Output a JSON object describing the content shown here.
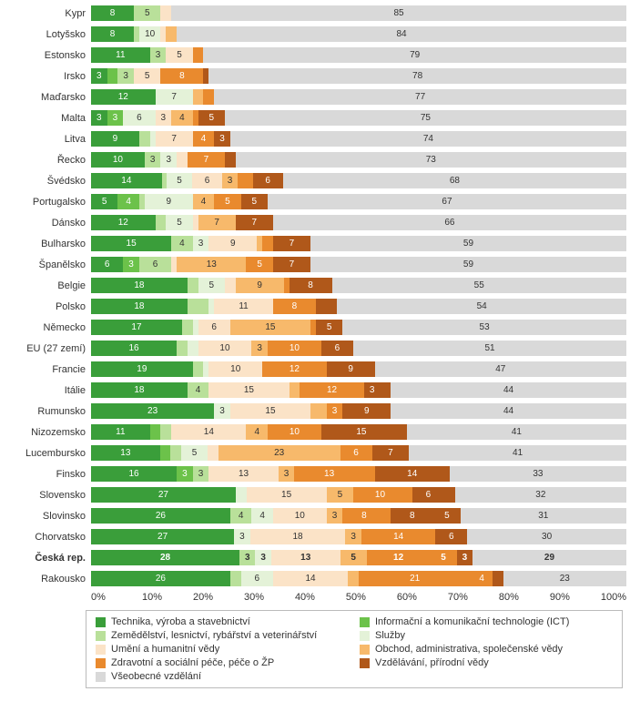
{
  "colors": {
    "c0": "#3a9e3a",
    "c1": "#6cc24a",
    "c2": "#b9e09a",
    "c3": "#e4f2d8",
    "c4": "#fbe3c7",
    "c5": "#f7b96b",
    "c6": "#e98a2e",
    "c7": "#b0581a",
    "c8": "#d9d9d9"
  },
  "legend": [
    {
      "k": "c0",
      "t": "Technika, výroba a stavebnictví"
    },
    {
      "k": "c1",
      "t": "Informační a komunikační technologie (ICT)"
    },
    {
      "k": "c2",
      "t": "Zemědělství, lesnictví, rybářství a veterinářství"
    },
    {
      "k": "c3",
      "t": "Služby"
    },
    {
      "k": "c4",
      "t": "Umění a humanitní vědy"
    },
    {
      "k": "c5",
      "t": "Obchod, administrativa, společenské vědy"
    },
    {
      "k": "c6",
      "t": "Zdravotní a sociální péče, péče o ŽP"
    },
    {
      "k": "c7",
      "t": "Vzdělávání, přírodní vědy"
    },
    {
      "k": "c8",
      "t": "Všeobecné vzdělání"
    }
  ],
  "axis": [
    "0%",
    "10%",
    "20%",
    "30%",
    "40%",
    "50%",
    "60%",
    "70%",
    "80%",
    "90%",
    "100%"
  ],
  "rows": [
    {
      "n": "Kypr",
      "v": [
        8,
        0,
        5,
        0,
        2,
        0,
        0,
        0,
        85
      ]
    },
    {
      "n": "Lotyšsko",
      "v": [
        8,
        10,
        0,
        4,
        0,
        2,
        0,
        0,
        84
      ],
      "fix": [
        8,
        -4,
        0,
        4,
        0,
        2,
        0,
        0,
        84
      ],
      "raw": [
        8,
        null,
        10,
        4,
        null,
        2,
        null,
        null,
        84
      ],
      "segs": [
        [
          8,
          "8"
        ],
        [
          0,
          ""
        ],
        [
          1,
          ""
        ],
        [
          4,
          "10"
        ],
        [
          1,
          "4"
        ],
        [
          2,
          "2"
        ],
        [
          0,
          ""
        ],
        [
          0,
          ""
        ],
        [
          84,
          "84"
        ]
      ],
      "use": "segs"
    },
    {
      "n": "Estonsko",
      "v": [
        11,
        0,
        3,
        0,
        5,
        0,
        2,
        0,
        79
      ]
    },
    {
      "n": "Irsko",
      "v": [
        3,
        2,
        3,
        0,
        5,
        0,
        8,
        1,
        78
      ]
    },
    {
      "n": "Maďarsko",
      "v": [
        12,
        0,
        0,
        7,
        0,
        2,
        2,
        0,
        77
      ]
    },
    {
      "n": "Malta",
      "v": [
        3,
        3,
        0,
        6,
        3,
        4,
        0,
        5,
        75
      ],
      "dk": true,
      "segs": [
        [
          3,
          "3"
        ],
        [
          3,
          "3"
        ],
        [
          0,
          ""
        ],
        [
          6,
          "6"
        ],
        [
          3,
          "3"
        ],
        [
          4,
          "4"
        ],
        [
          1,
          ""
        ],
        [
          5,
          "5"
        ],
        [
          75,
          "75"
        ]
      ],
      "use": "segs"
    },
    {
      "n": "Litva",
      "v": [
        9,
        0,
        2,
        0,
        7,
        0,
        4,
        3,
        74
      ],
      "segs": [
        [
          9,
          "9"
        ],
        [
          0,
          ""
        ],
        [
          2,
          "2"
        ],
        [
          1,
          ""
        ],
        [
          7,
          "7"
        ],
        [
          0,
          ""
        ],
        [
          4,
          "4"
        ],
        [
          3,
          "3"
        ],
        [
          74,
          "74"
        ]
      ],
      "use": "segs"
    },
    {
      "n": "Řecko",
      "v": [
        10,
        0,
        3,
        3,
        2,
        0,
        7,
        2,
        73
      ]
    },
    {
      "n": "Švédsko",
      "v": [
        14,
        0,
        0,
        5,
        6,
        3,
        0,
        6,
        68
      ],
      "segs": [
        [
          14,
          "14"
        ],
        [
          0,
          ""
        ],
        [
          1,
          ""
        ],
        [
          5,
          "5"
        ],
        [
          6,
          "6"
        ],
        [
          3,
          "3"
        ],
        [
          3,
          ""
        ],
        [
          6,
          "6"
        ],
        [
          68,
          "68"
        ]
      ],
      "use": "segs"
    },
    {
      "n": "Portugalsko",
      "v": [
        5,
        4,
        0,
        9,
        0,
        4,
        5,
        5,
        67
      ],
      "segs": [
        [
          5,
          "5"
        ],
        [
          4,
          "4"
        ],
        [
          1,
          ""
        ],
        [
          9,
          "9"
        ],
        [
          0,
          ""
        ],
        [
          4,
          "4"
        ],
        [
          5,
          "5"
        ],
        [
          5,
          "5"
        ],
        [
          67,
          "67"
        ]
      ],
      "use": "segs"
    },
    {
      "n": "Dánsko",
      "v": [
        12,
        0,
        2,
        5,
        0,
        7,
        0,
        7,
        66
      ],
      "segs": [
        [
          12,
          "12"
        ],
        [
          0,
          ""
        ],
        [
          2,
          "2"
        ],
        [
          5,
          "5"
        ],
        [
          1,
          ""
        ],
        [
          7,
          "7"
        ],
        [
          0,
          ""
        ],
        [
          7,
          "7"
        ],
        [
          66,
          "66"
        ]
      ],
      "use": "segs"
    },
    {
      "n": "Bulharsko",
      "v": [
        15,
        0,
        4,
        3,
        9,
        2,
        0,
        7,
        59
      ],
      "segs": [
        [
          15,
          "15"
        ],
        [
          0,
          ""
        ],
        [
          4,
          "4"
        ],
        [
          3,
          "3"
        ],
        [
          9,
          "9"
        ],
        [
          1,
          ""
        ],
        [
          2,
          "2"
        ],
        [
          7,
          "7"
        ],
        [
          59,
          "59"
        ]
      ],
      "use": "segs"
    },
    {
      "n": "Španělsko",
      "v": [
        6,
        3,
        6,
        0,
        13,
        0,
        5,
        7,
        59
      ],
      "segs": [
        [
          6,
          "6"
        ],
        [
          3,
          "3"
        ],
        [
          6,
          "6"
        ],
        [
          0,
          ""
        ],
        [
          1,
          ""
        ],
        [
          13,
          "13"
        ],
        [
          5,
          "5"
        ],
        [
          7,
          "7"
        ],
        [
          59,
          "59"
        ]
      ],
      "use": "segs"
    },
    {
      "n": "Belgie",
      "v": [
        18,
        0,
        2,
        5,
        2,
        9,
        0,
        8,
        55
      ],
      "segs": [
        [
          18,
          "18"
        ],
        [
          0,
          ""
        ],
        [
          2,
          "2"
        ],
        [
          5,
          "5"
        ],
        [
          2,
          "2"
        ],
        [
          9,
          "9"
        ],
        [
          1,
          ""
        ],
        [
          8,
          "8"
        ],
        [
          55,
          "55"
        ]
      ],
      "use": "segs"
    },
    {
      "n": "Polsko",
      "v": [
        18,
        0,
        4,
        0,
        11,
        0,
        8,
        5,
        54
      ],
      "segs": [
        [
          18,
          "18"
        ],
        [
          0,
          ""
        ],
        [
          4,
          ""
        ],
        [
          1,
          ""
        ],
        [
          11,
          "11"
        ],
        [
          0,
          ""
        ],
        [
          8,
          "8"
        ],
        [
          4,
          ""
        ],
        [
          54,
          "54"
        ]
      ],
      "use": "segs"
    },
    {
      "n": "Německo",
      "v": [
        17,
        0,
        2,
        6,
        0,
        15,
        0,
        5,
        53
      ],
      "segs": [
        [
          17,
          "17"
        ],
        [
          0,
          ""
        ],
        [
          2,
          "2"
        ],
        [
          1,
          ""
        ],
        [
          6,
          "6"
        ],
        [
          15,
          "15"
        ],
        [
          1,
          ""
        ],
        [
          5,
          "5"
        ],
        [
          53,
          "53"
        ]
      ],
      "use": "segs"
    },
    {
      "n": "EU (27 zemí)",
      "v": [
        16,
        0,
        2,
        2,
        10,
        3,
        10,
        6,
        51
      ]
    },
    {
      "n": "Francie",
      "v": [
        19,
        0,
        2,
        0,
        10,
        0,
        12,
        9,
        47
      ],
      "segs": [
        [
          19,
          "19"
        ],
        [
          0,
          ""
        ],
        [
          2,
          "2"
        ],
        [
          1,
          ""
        ],
        [
          10,
          "10"
        ],
        [
          0,
          ""
        ],
        [
          12,
          "12"
        ],
        [
          9,
          "9"
        ],
        [
          47,
          "47"
        ]
      ],
      "use": "segs"
    },
    {
      "n": "Itálie",
      "v": [
        18,
        0,
        4,
        0,
        15,
        0,
        12,
        3,
        44
      ],
      "segs": [
        [
          18,
          "18"
        ],
        [
          0,
          ""
        ],
        [
          4,
          "4"
        ],
        [
          0,
          ""
        ],
        [
          15,
          "15"
        ],
        [
          2,
          ""
        ],
        [
          12,
          "12"
        ],
        [
          3,
          "3"
        ],
        [
          2,
          "2"
        ],
        [
          44,
          "44"
        ]
      ],
      "use": "segs",
      "ck": [
        "c0",
        "c1",
        "c2",
        "c3",
        "c4",
        "c5",
        "c6",
        "c7",
        "c7",
        "c8"
      ],
      "cfix": [
        "c0",
        "c1",
        "c2",
        "c3",
        "c4",
        "c5",
        "c6",
        "c6",
        "c7",
        "c8"
      ],
      "ninec": true
    },
    {
      "n": "Rumunsko",
      "v": [
        23,
        0,
        0,
        3,
        15,
        0,
        3,
        9,
        44
      ],
      "segs": [
        [
          23,
          "23"
        ],
        [
          0,
          ""
        ],
        [
          0,
          ""
        ],
        [
          3,
          "3"
        ],
        [
          15,
          "15"
        ],
        [
          3,
          ""
        ],
        [
          3,
          "3"
        ],
        [
          9,
          "9"
        ],
        [
          44,
          "44"
        ]
      ],
      "use": "segs"
    },
    {
      "n": "Nizozemsko",
      "v": [
        11,
        2,
        2,
        0,
        14,
        4,
        10,
        15,
        41
      ],
      "segs": [
        [
          11,
          "11"
        ],
        [
          2,
          "2"
        ],
        [
          2,
          "2"
        ],
        [
          0,
          ""
        ],
        [
          14,
          "14"
        ],
        [
          4,
          "4"
        ],
        [
          10,
          "10"
        ],
        [
          15,
          "15"
        ],
        [
          1,
          ""
        ],
        [
          41,
          "41"
        ]
      ],
      "use": "segs",
      "ck": [
        "c0",
        "c1",
        "c2",
        "c3",
        "c4",
        "c5",
        "c6",
        "c7",
        "c7",
        "c8"
      ]
    },
    {
      "n": "Lucembursko",
      "v": [
        13,
        2,
        2,
        5,
        2,
        23,
        0,
        6,
        7,
        41
      ],
      "ck": [
        "c0",
        "c1",
        "c2",
        "c3",
        "c4",
        "c5",
        "c6",
        "c6",
        "c7",
        "c8"
      ],
      "segs": [
        [
          13,
          "13"
        ],
        [
          2,
          "2"
        ],
        [
          2,
          "2"
        ],
        [
          5,
          "5"
        ],
        [
          2,
          "2"
        ],
        [
          23,
          "23"
        ],
        [
          0,
          ""
        ],
        [
          6,
          "6"
        ],
        [
          7,
          "7"
        ],
        [
          41,
          "41"
        ]
      ],
      "use": "segs",
      "ninec": true
    },
    {
      "n": "Finsko",
      "v": [
        16,
        3,
        3,
        0,
        13,
        3,
        13,
        0,
        14,
        33
      ],
      "segs": [
        [
          16,
          "16"
        ],
        [
          3,
          "3"
        ],
        [
          3,
          "3"
        ],
        [
          0,
          ""
        ],
        [
          13,
          "13"
        ],
        [
          3,
          "3"
        ],
        [
          13,
          "13"
        ],
        [
          2,
          ""
        ],
        [
          14,
          "14"
        ],
        [
          33,
          "33"
        ]
      ],
      "use": "segs",
      "ck": [
        "c0",
        "c1",
        "c2",
        "c3",
        "c4",
        "c5",
        "c6",
        "c6",
        "c7",
        "c8"
      ]
    },
    {
      "n": "Slovensko",
      "v": [
        27,
        0,
        0,
        2,
        15,
        5,
        10,
        6,
        2,
        32
      ],
      "segs": [
        [
          27,
          "27"
        ],
        [
          0,
          ""
        ],
        [
          0,
          ""
        ],
        [
          2,
          "2"
        ],
        [
          15,
          "15"
        ],
        [
          5,
          "5"
        ],
        [
          10,
          "10"
        ],
        [
          1,
          ""
        ],
        [
          6,
          "6"
        ],
        [
          2,
          "2"
        ],
        [
          32,
          "32"
        ]
      ],
      "use": "segs",
      "ck": [
        "c0",
        "c1",
        "c2",
        "c3",
        "c4",
        "c5",
        "c6",
        "c6",
        "c7",
        "c7",
        "c8"
      ]
    },
    {
      "n": "Slovinsko",
      "v": [
        26,
        0,
        4,
        4,
        10,
        3,
        8,
        8,
        5,
        31
      ],
      "segs": [
        [
          26,
          "26"
        ],
        [
          0,
          ""
        ],
        [
          4,
          "4"
        ],
        [
          4,
          "4"
        ],
        [
          10,
          "10"
        ],
        [
          3,
          "3"
        ],
        [
          8,
          "8"
        ],
        [
          1,
          ""
        ],
        [
          8,
          "8"
        ],
        [
          5,
          "5"
        ],
        [
          31,
          "31"
        ]
      ],
      "use": "segs",
      "ck": [
        "c0",
        "c1",
        "c2",
        "c3",
        "c4",
        "c5",
        "c6",
        "c6",
        "c7",
        "c7",
        "c8"
      ]
    },
    {
      "n": "Chorvatsko",
      "v": [
        27,
        0,
        0,
        3,
        18,
        3,
        14,
        0,
        6,
        30
      ],
      "segs": [
        [
          27,
          "27"
        ],
        [
          0,
          ""
        ],
        [
          0,
          ""
        ],
        [
          3,
          "3"
        ],
        [
          18,
          "18"
        ],
        [
          3,
          "3"
        ],
        [
          14,
          "14"
        ],
        [
          0,
          ""
        ],
        [
          6,
          "6"
        ],
        [
          30,
          "30"
        ]
      ],
      "use": "segs",
      "ck": [
        "c0",
        "c1",
        "c2",
        "c3",
        "c4",
        "c5",
        "c6",
        "c6",
        "c7",
        "c8"
      ]
    },
    {
      "n": "Česká rep.",
      "bold": true,
      "v": [
        28,
        0,
        3,
        3,
        13,
        5,
        12,
        5,
        3,
        29
      ],
      "segs": [
        [
          28,
          "28"
        ],
        [
          0,
          ""
        ],
        [
          3,
          "3"
        ],
        [
          3,
          "3"
        ],
        [
          13,
          "13"
        ],
        [
          5,
          "5"
        ],
        [
          12,
          "12"
        ],
        [
          5,
          "5"
        ],
        [
          3,
          "3"
        ],
        [
          29,
          "29"
        ]
      ],
      "use": "segs",
      "ck": [
        "c0",
        "c1",
        "c2",
        "c3",
        "c4",
        "c5",
        "c6",
        "c7",
        "c7",
        "c8"
      ],
      "ckfix": [
        "c0",
        "c1",
        "c2",
        "c3",
        "c4",
        "c5",
        "c6",
        "c6",
        "c7",
        "c8"
      ]
    },
    {
      "n": "Rakousko",
      "v": [
        26,
        0,
        2,
        6,
        14,
        2,
        21,
        4,
        2,
        23
      ],
      "segs": [
        [
          26,
          "26"
        ],
        [
          0,
          ""
        ],
        [
          2,
          "2"
        ],
        [
          6,
          "6"
        ],
        [
          14,
          "14"
        ],
        [
          2,
          "2"
        ],
        [
          21,
          "21"
        ],
        [
          4,
          "4"
        ],
        [
          2,
          "2"
        ],
        [
          23,
          "23"
        ]
      ],
      "use": "segs",
      "ck": [
        "c0",
        "c1",
        "c2",
        "c3",
        "c4",
        "c5",
        "c6",
        "c7",
        "c7",
        "c8"
      ],
      "ckfix": [
        "c0",
        "c1",
        "c2",
        "c3",
        "c4",
        "c5",
        "c6",
        "c6",
        "c7",
        "c8"
      ]
    }
  ]
}
